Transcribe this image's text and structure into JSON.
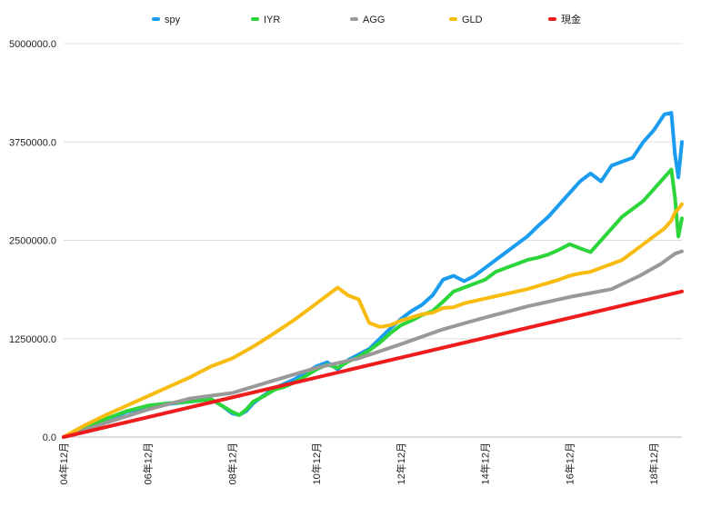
{
  "chart_data": {
    "type": "line",
    "title": "",
    "xlabel": "",
    "ylabel": "",
    "ylim": [
      0,
      5000000
    ],
    "y_ticks": [
      0,
      1250000,
      2500000,
      3750000,
      5000000
    ],
    "y_tick_labels": [
      "0.0",
      "1250000.0",
      "2500000.0",
      "3750000.0",
      "5000000.0"
    ],
    "x_range": [
      0,
      176
    ],
    "x_tick_positions": [
      0,
      24,
      48,
      72,
      96,
      120,
      144,
      168
    ],
    "x_tick_labels": [
      "04年12月",
      "06年12月",
      "08年12月",
      "10年12月",
      "12年12月",
      "14年12月",
      "16年12月",
      "18年12月"
    ],
    "grid": "horizontal",
    "legend_position": "top",
    "series": [
      {
        "name": "spy",
        "color": "#1a9cf0",
        "x": [
          0,
          6,
          12,
          18,
          24,
          30,
          36,
          42,
          45,
          48,
          50,
          52,
          54,
          57,
          60,
          63,
          66,
          69,
          72,
          75,
          78,
          81,
          84,
          87,
          90,
          93,
          96,
          99,
          102,
          105,
          108,
          111,
          114,
          117,
          120,
          123,
          126,
          129,
          132,
          135,
          138,
          141,
          144,
          147,
          150,
          153,
          156,
          159,
          162,
          165,
          168,
          171,
          173,
          174,
          175,
          176
        ],
        "y": [
          0,
          110000,
          210000,
          320000,
          380000,
          420000,
          450000,
          480000,
          400000,
          300000,
          280000,
          330000,
          430000,
          530000,
          620000,
          680000,
          740000,
          820000,
          900000,
          950000,
          860000,
          980000,
          1050000,
          1120000,
          1250000,
          1380000,
          1500000,
          1600000,
          1680000,
          1800000,
          2000000,
          2050000,
          1980000,
          2050000,
          2150000,
          2250000,
          2350000,
          2450000,
          2550000,
          2680000,
          2800000,
          2950000,
          3100000,
          3250000,
          3350000,
          3250000,
          3450000,
          3500000,
          3550000,
          3750000,
          3900000,
          4100000,
          4120000,
          3600000,
          3300000,
          3750000
        ]
      },
      {
        "name": "IYR",
        "color": "#2bd53a",
        "x": [
          0,
          6,
          12,
          18,
          24,
          30,
          36,
          42,
          45,
          48,
          50,
          52,
          54,
          57,
          60,
          63,
          66,
          69,
          72,
          75,
          78,
          81,
          84,
          87,
          90,
          93,
          96,
          99,
          102,
          105,
          108,
          111,
          114,
          117,
          120,
          123,
          126,
          129,
          132,
          135,
          138,
          141,
          144,
          147,
          150,
          153,
          156,
          159,
          162,
          165,
          168,
          171,
          173,
          174,
          175,
          176
        ],
        "y": [
          0,
          120000,
          230000,
          330000,
          400000,
          430000,
          450000,
          480000,
          400000,
          320000,
          280000,
          350000,
          450000,
          520000,
          600000,
          640000,
          700000,
          780000,
          860000,
          920000,
          880000,
          960000,
          1020000,
          1100000,
          1200000,
          1320000,
          1420000,
          1480000,
          1550000,
          1600000,
          1720000,
          1850000,
          1900000,
          1950000,
          2000000,
          2100000,
          2150000,
          2200000,
          2250000,
          2280000,
          2320000,
          2380000,
          2450000,
          2400000,
          2350000,
          2500000,
          2650000,
          2800000,
          2900000,
          3000000,
          3150000,
          3300000,
          3400000,
          3050000,
          2550000,
          2780000
        ]
      },
      {
        "name": "AGG",
        "color": "#999999",
        "x": [
          0,
          12,
          24,
          36,
          48,
          60,
          72,
          84,
          96,
          108,
          120,
          132,
          144,
          156,
          164,
          170,
          174,
          176
        ],
        "y": [
          0,
          180000,
          350000,
          490000,
          560000,
          720000,
          880000,
          1000000,
          1180000,
          1370000,
          1520000,
          1660000,
          1780000,
          1880000,
          2050000,
          2200000,
          2330000,
          2360000
        ]
      },
      {
        "name": "GLD",
        "color": "#f8bb10",
        "x": [
          0,
          6,
          12,
          18,
          24,
          30,
          36,
          42,
          48,
          54,
          60,
          66,
          72,
          78,
          81,
          84,
          87,
          90,
          93,
          96,
          99,
          102,
          105,
          108,
          111,
          114,
          117,
          120,
          123,
          126,
          129,
          132,
          135,
          138,
          141,
          144,
          147,
          150,
          153,
          156,
          159,
          162,
          165,
          168,
          171,
          173,
          174,
          175,
          176
        ],
        "y": [
          0,
          150000,
          280000,
          400000,
          520000,
          640000,
          760000,
          900000,
          1000000,
          1150000,
          1320000,
          1500000,
          1700000,
          1900000,
          1800000,
          1750000,
          1450000,
          1400000,
          1420000,
          1480000,
          1520000,
          1560000,
          1580000,
          1640000,
          1650000,
          1700000,
          1730000,
          1760000,
          1790000,
          1820000,
          1850000,
          1880000,
          1920000,
          1960000,
          2000000,
          2050000,
          2080000,
          2100000,
          2150000,
          2200000,
          2250000,
          2350000,
          2450000,
          2550000,
          2650000,
          2750000,
          2850000,
          2900000,
          2960000
        ]
      },
      {
        "name": "現金",
        "color": "#ee1c1c",
        "x": [
          0,
          176
        ],
        "y": [
          0,
          1850000
        ]
      }
    ]
  }
}
